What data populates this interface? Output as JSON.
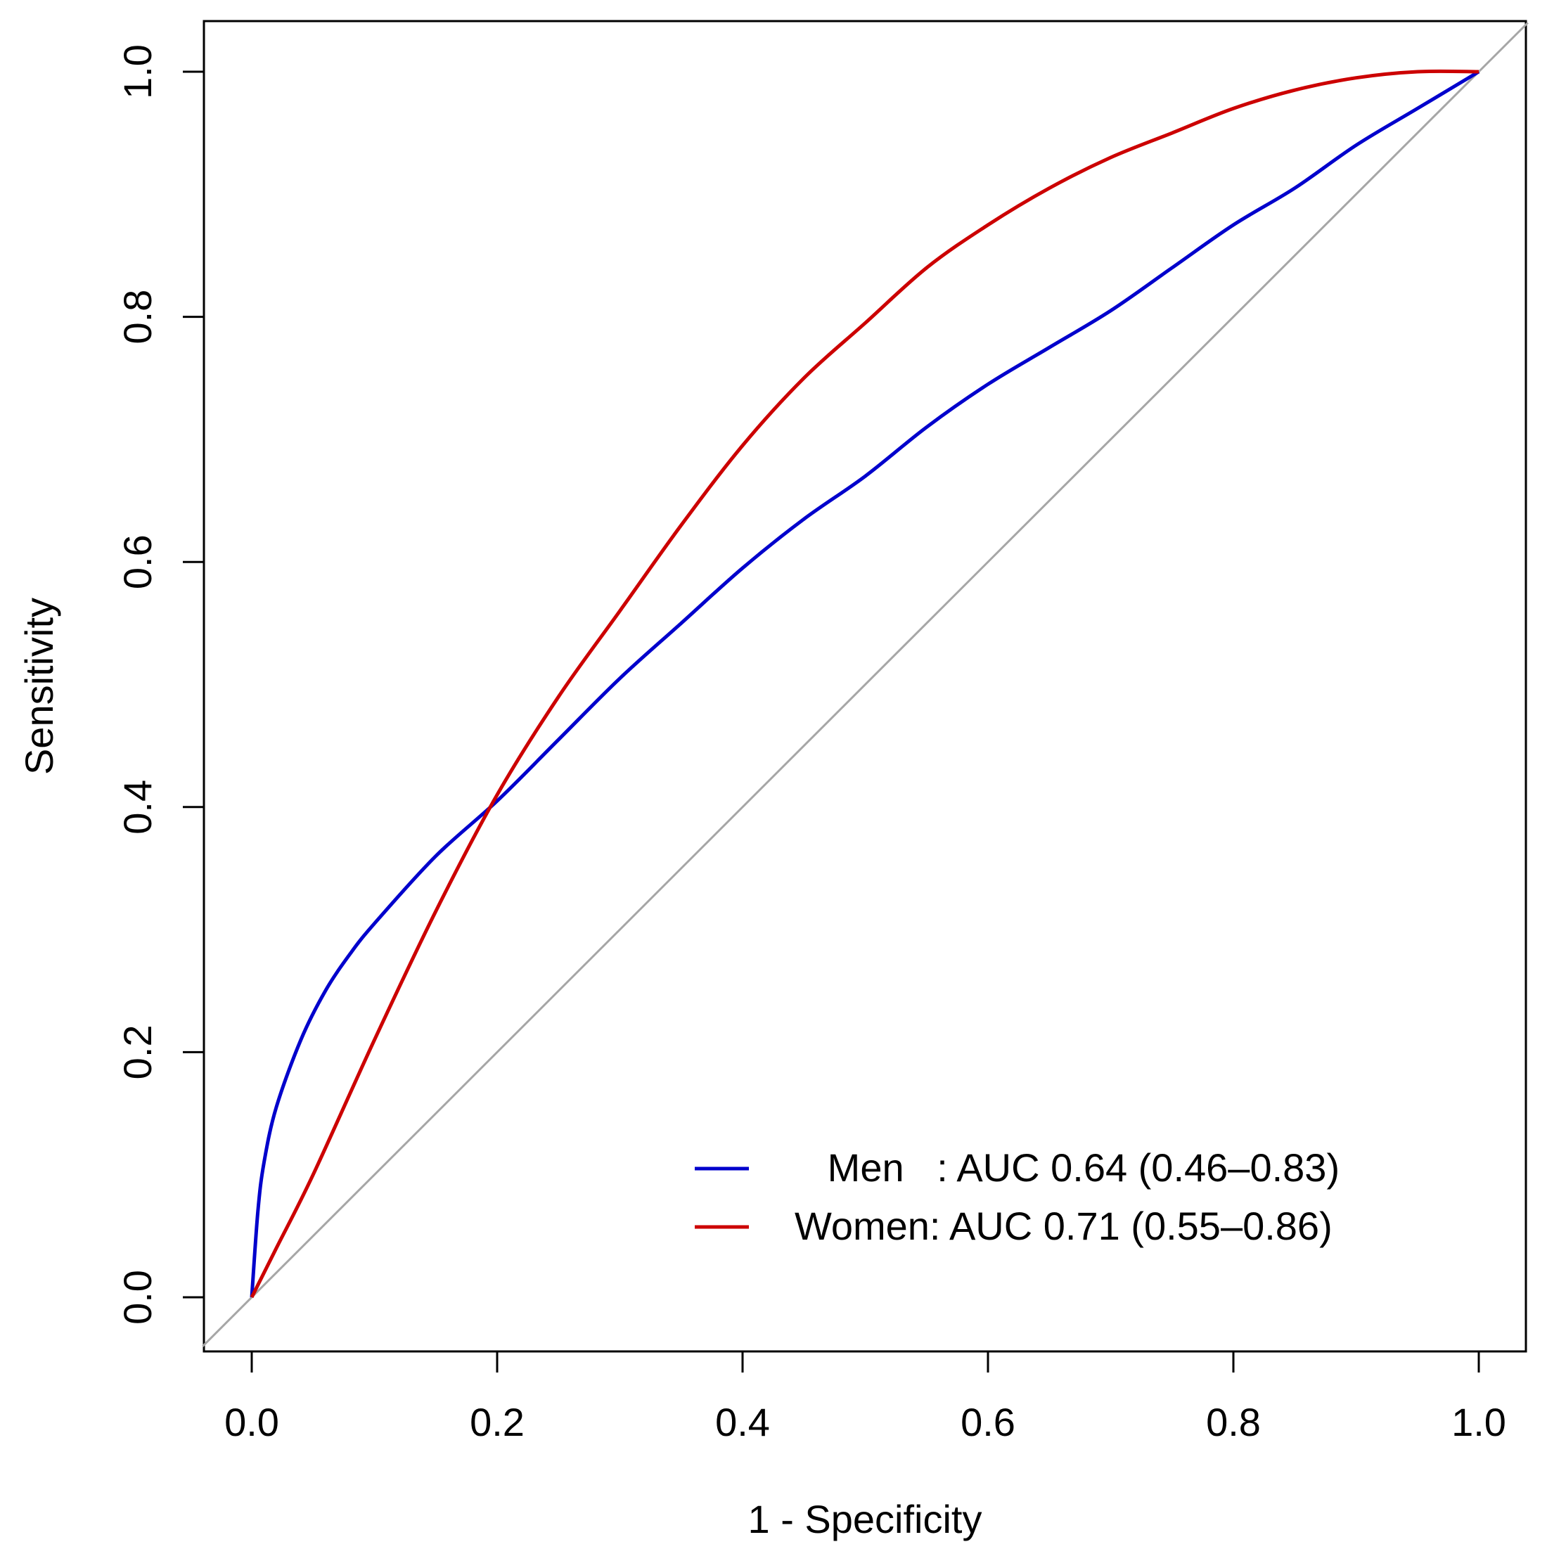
{
  "chart_data": {
    "type": "line",
    "title": "",
    "xlabel": "1 - Specificity",
    "ylabel": "Sensitivity",
    "xlim": [
      0,
      1
    ],
    "ylim": [
      0,
      1
    ],
    "xticks": [
      "0.0",
      "0.2",
      "0.4",
      "0.6",
      "0.8",
      "1.0"
    ],
    "yticks": [
      "0.0",
      "0.2",
      "0.4",
      "0.6",
      "0.8",
      "1.0"
    ],
    "grid": false,
    "legend_position": "bottom-right",
    "reference_line": {
      "from": [
        0,
        0
      ],
      "to": [
        1,
        1
      ],
      "color": "#a6a6a6"
    },
    "series": [
      {
        "name": "Men",
        "legend_label": "   Men   : AUC 0.64 (0.46–0.83)",
        "color": "#0000cc",
        "x": [
          0,
          0.005,
          0.01,
          0.02,
          0.04,
          0.06,
          0.08,
          0.1,
          0.15,
          0.2,
          0.25,
          0.3,
          0.35,
          0.4,
          0.45,
          0.5,
          0.55,
          0.6,
          0.65,
          0.7,
          0.75,
          0.8,
          0.85,
          0.9,
          0.95,
          1.0
        ],
        "y": [
          0,
          0.07,
          0.11,
          0.155,
          0.21,
          0.25,
          0.28,
          0.305,
          0.36,
          0.405,
          0.455,
          0.505,
          0.55,
          0.595,
          0.635,
          0.67,
          0.71,
          0.745,
          0.775,
          0.805,
          0.84,
          0.875,
          0.905,
          0.94,
          0.97,
          1.0
        ]
      },
      {
        "name": "Women",
        "legend_label": "Women: AUC 0.71 (0.55–0.86)",
        "color": "#cc0000",
        "x": [
          0,
          0.02,
          0.05,
          0.1,
          0.15,
          0.2,
          0.25,
          0.3,
          0.35,
          0.4,
          0.45,
          0.5,
          0.55,
          0.6,
          0.65,
          0.7,
          0.75,
          0.8,
          0.85,
          0.9,
          0.95,
          1.0
        ],
        "y": [
          0,
          0.04,
          0.1,
          0.21,
          0.315,
          0.41,
          0.49,
          0.56,
          0.63,
          0.695,
          0.75,
          0.795,
          0.84,
          0.875,
          0.905,
          0.93,
          0.95,
          0.97,
          0.985,
          0.995,
          1.0,
          1.0
        ]
      }
    ]
  }
}
